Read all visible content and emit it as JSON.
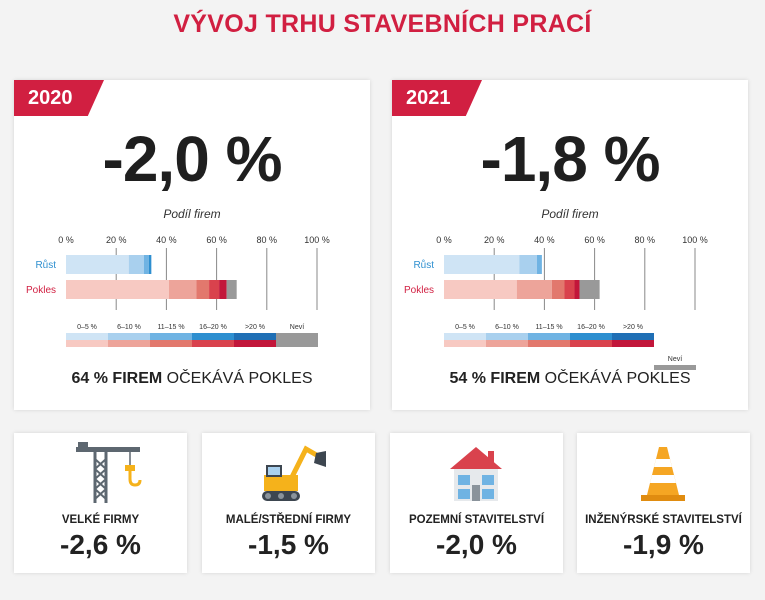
{
  "title": "VÝVOJ TRHU STAVEBNÍCH PRACÍ",
  "colors": {
    "accent": "#d11f41",
    "band_blue": [
      "#cfe4f5",
      "#a9d0ee",
      "#6fb3e3",
      "#2e8fd0",
      "#1f6fb5"
    ],
    "band_red": [
      "#f7c9c2",
      "#eda49a",
      "#e2786d",
      "#d9424d",
      "#c2163a"
    ],
    "unknown": "#999999"
  },
  "legend": {
    "labels": [
      "0–5 %",
      "6–10 %",
      "11–15 %",
      "16–20 %",
      ">20 %"
    ],
    "unknown_label": "Neví"
  },
  "chart_data": [
    {
      "type": "bar",
      "year": "2020",
      "headline": "-2,0 %",
      "title": "Podíl firem",
      "x_ticks": [
        "0 %",
        "20 %",
        "40 %",
        "60 %",
        "80 %",
        "100 %"
      ],
      "xlim": [
        0,
        100
      ],
      "categories": [
        "Růst",
        "Pokles"
      ],
      "series": [
        {
          "name": "0–5 %",
          "values": [
            25,
            41
          ]
        },
        {
          "name": "6–10 %",
          "values": [
            6,
            11
          ]
        },
        {
          "name": "11–15 %",
          "values": [
            2,
            5
          ]
        },
        {
          "name": "16–20 %",
          "values": [
            1,
            4
          ]
        },
        {
          "name": ">20 %",
          "values": [
            0,
            3
          ]
        },
        {
          "name": "Neví",
          "values": [
            0,
            4
          ]
        }
      ],
      "summary_bold": "64 % FIREM",
      "summary_rest": " OČEKÁVÁ POKLES"
    },
    {
      "type": "bar",
      "year": "2021",
      "headline": "-1,8 %",
      "title": "Podíl firem",
      "x_ticks": [
        "0 %",
        "20 %",
        "40 %",
        "60 %",
        "80 %",
        "100 %"
      ],
      "xlim": [
        0,
        100
      ],
      "categories": [
        "Růst",
        "Pokles"
      ],
      "series": [
        {
          "name": "0–5 %",
          "values": [
            30,
            29
          ]
        },
        {
          "name": "6–10 %",
          "values": [
            7,
            14
          ]
        },
        {
          "name": "11–15 %",
          "values": [
            2,
            5
          ]
        },
        {
          "name": "16–20 %",
          "values": [
            0,
            4
          ]
        },
        {
          "name": ">20 %",
          "values": [
            0,
            2
          ]
        },
        {
          "name": "Neví",
          "values": [
            0,
            8
          ]
        }
      ],
      "summary_bold": "54 % FIREM",
      "summary_rest": " OČEKÁVÁ POKLES"
    }
  ],
  "segments": [
    {
      "icon": "crane-icon",
      "label": "VELKÉ FIRMY",
      "value": "-2,6 %"
    },
    {
      "icon": "excavator-icon",
      "label": "MALÉ/STŘEDNÍ FIRMY",
      "value": "-1,5 %"
    },
    {
      "icon": "house-icon",
      "label": "POZEMNÍ STAVITELSTVÍ",
      "value": "-2,0 %"
    },
    {
      "icon": "traffic-cone-icon",
      "label": "INŽENÝRSKÉ STAVITELSTVÍ",
      "value": "-1,9 %"
    }
  ]
}
